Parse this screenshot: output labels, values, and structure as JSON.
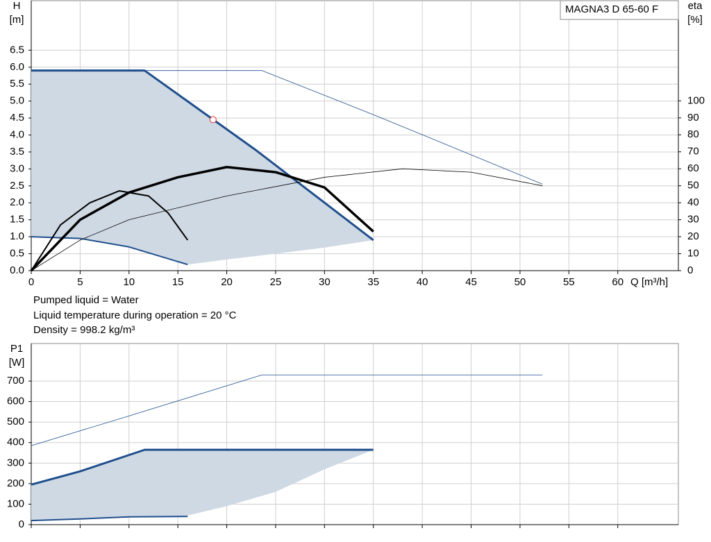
{
  "chart_data": [
    {
      "type": "line",
      "title": "MAGNA3 D 65-60 F",
      "xlabel": "Q [m³/h]",
      "ylabel": "H",
      "yunit": "[m]",
      "y2label": "eta",
      "y2unit": "[%]",
      "xlim": [
        0,
        66.2
      ],
      "xticks": [
        0,
        5,
        10,
        15,
        20,
        25,
        30,
        35,
        40,
        45,
        50,
        55,
        60
      ],
      "ylim": [
        0,
        7.96
      ],
      "yticks": [
        {
          "value": 0,
          "label": "0.0"
        },
        0.5,
        {
          "value": 1,
          "label": "1.0"
        },
        1.5,
        {
          "value": 2,
          "label": "2.0"
        },
        2.5,
        {
          "value": 3,
          "label": "3.0"
        },
        3.5,
        {
          "value": 4,
          "label": "4.0"
        },
        4.5,
        {
          "value": 5,
          "label": "5.0"
        },
        5.5,
        {
          "value": 6,
          "label": "6.0"
        },
        6.5
      ],
      "y2lim": [
        0,
        159
      ],
      "y2ticks": [
        0,
        10,
        20,
        30,
        40,
        50,
        60,
        70,
        80,
        90,
        100
      ],
      "grid": true,
      "series": [
        {
          "kind": "area",
          "color": "#cfd9e4",
          "x": [
            0,
            11.6,
            23,
            35,
            30,
            25,
            20,
            16,
            16,
            10,
            5,
            0
          ],
          "values": [
            5.9,
            5.9,
            3.55,
            0.9,
            0.68,
            0.5,
            0.33,
            0.18,
            0.18,
            0.7,
            0.95,
            1.0
          ]
        },
        {
          "kind": "line",
          "color": "#1f4e8c",
          "width": 0.8,
          "x": [
            0,
            23.6,
            35,
            52.3
          ],
          "values": [
            5.9,
            5.9,
            4.6,
            2.55
          ]
        },
        {
          "kind": "line",
          "color": "#1f4e8c",
          "width": 3,
          "x": [
            0,
            11.6,
            23,
            35
          ],
          "values": [
            5.9,
            5.9,
            3.55,
            0.9
          ]
        },
        {
          "kind": "line",
          "color": "#1f4e8c",
          "width": 2,
          "x": [
            0,
            5,
            10,
            16
          ],
          "values": [
            1.0,
            0.95,
            0.7,
            0.18
          ]
        },
        {
          "kind": "line",
          "color": "#000000",
          "width": 0.8,
          "axis": "y2",
          "x": [
            0,
            5,
            10,
            20,
            30,
            38,
            45,
            52.3
          ],
          "values": [
            0,
            18,
            30,
            44,
            55,
            60,
            58,
            50
          ]
        },
        {
          "kind": "line",
          "color": "#000000",
          "width": 2,
          "axis": "y2",
          "x": [
            0,
            3,
            6,
            9,
            12,
            14,
            16
          ],
          "values": [
            0,
            27,
            40,
            47,
            44,
            34,
            18
          ]
        },
        {
          "kind": "line",
          "color": "#000000",
          "width": 3.5,
          "axis": "y2",
          "x": [
            0,
            5,
            10,
            15,
            20,
            25,
            30,
            35
          ],
          "values": [
            0,
            30,
            46,
            55,
            61,
            58,
            49,
            23
          ]
        },
        {
          "kind": "point",
          "color": "#e03030",
          "x": [
            18.6
          ],
          "values": [
            4.45
          ]
        }
      ]
    },
    {
      "type": "line",
      "ylabel": "P1",
      "yunit": "[W]",
      "xlim": [
        0,
        66.2
      ],
      "xticks": [
        0,
        5,
        10,
        15,
        20,
        25,
        30,
        35,
        40,
        45,
        50,
        55,
        60
      ],
      "ylim": [
        0,
        883
      ],
      "yticks": [
        0,
        100,
        200,
        300,
        400,
        500,
        600,
        700
      ],
      "grid": true,
      "series": [
        {
          "kind": "area",
          "color": "#cfd9e4",
          "x": [
            0,
            5,
            11.6,
            35,
            30,
            25,
            20,
            16,
            16,
            10,
            5,
            0
          ],
          "values": [
            195,
            260,
            365,
            365,
            270,
            160,
            90,
            45,
            40,
            38,
            28,
            20
          ]
        },
        {
          "kind": "line",
          "color": "#1f4e8c",
          "width": 0.8,
          "x": [
            0,
            10,
            23.6,
            52.3
          ],
          "values": [
            385,
            530,
            730,
            730
          ]
        },
        {
          "kind": "line",
          "color": "#1f4e8c",
          "width": 3,
          "x": [
            0,
            5,
            11.6,
            35
          ],
          "values": [
            195,
            260,
            365,
            365
          ]
        },
        {
          "kind": "line",
          "color": "#1f4e8c",
          "width": 2,
          "x": [
            0,
            5,
            10,
            16
          ],
          "values": [
            20,
            28,
            38,
            40
          ]
        }
      ]
    }
  ],
  "notes": [
    "Pumped liquid = Water",
    "Liquid temperature during operation = 20 °C",
    "Density = 998.2 kg/m³"
  ]
}
